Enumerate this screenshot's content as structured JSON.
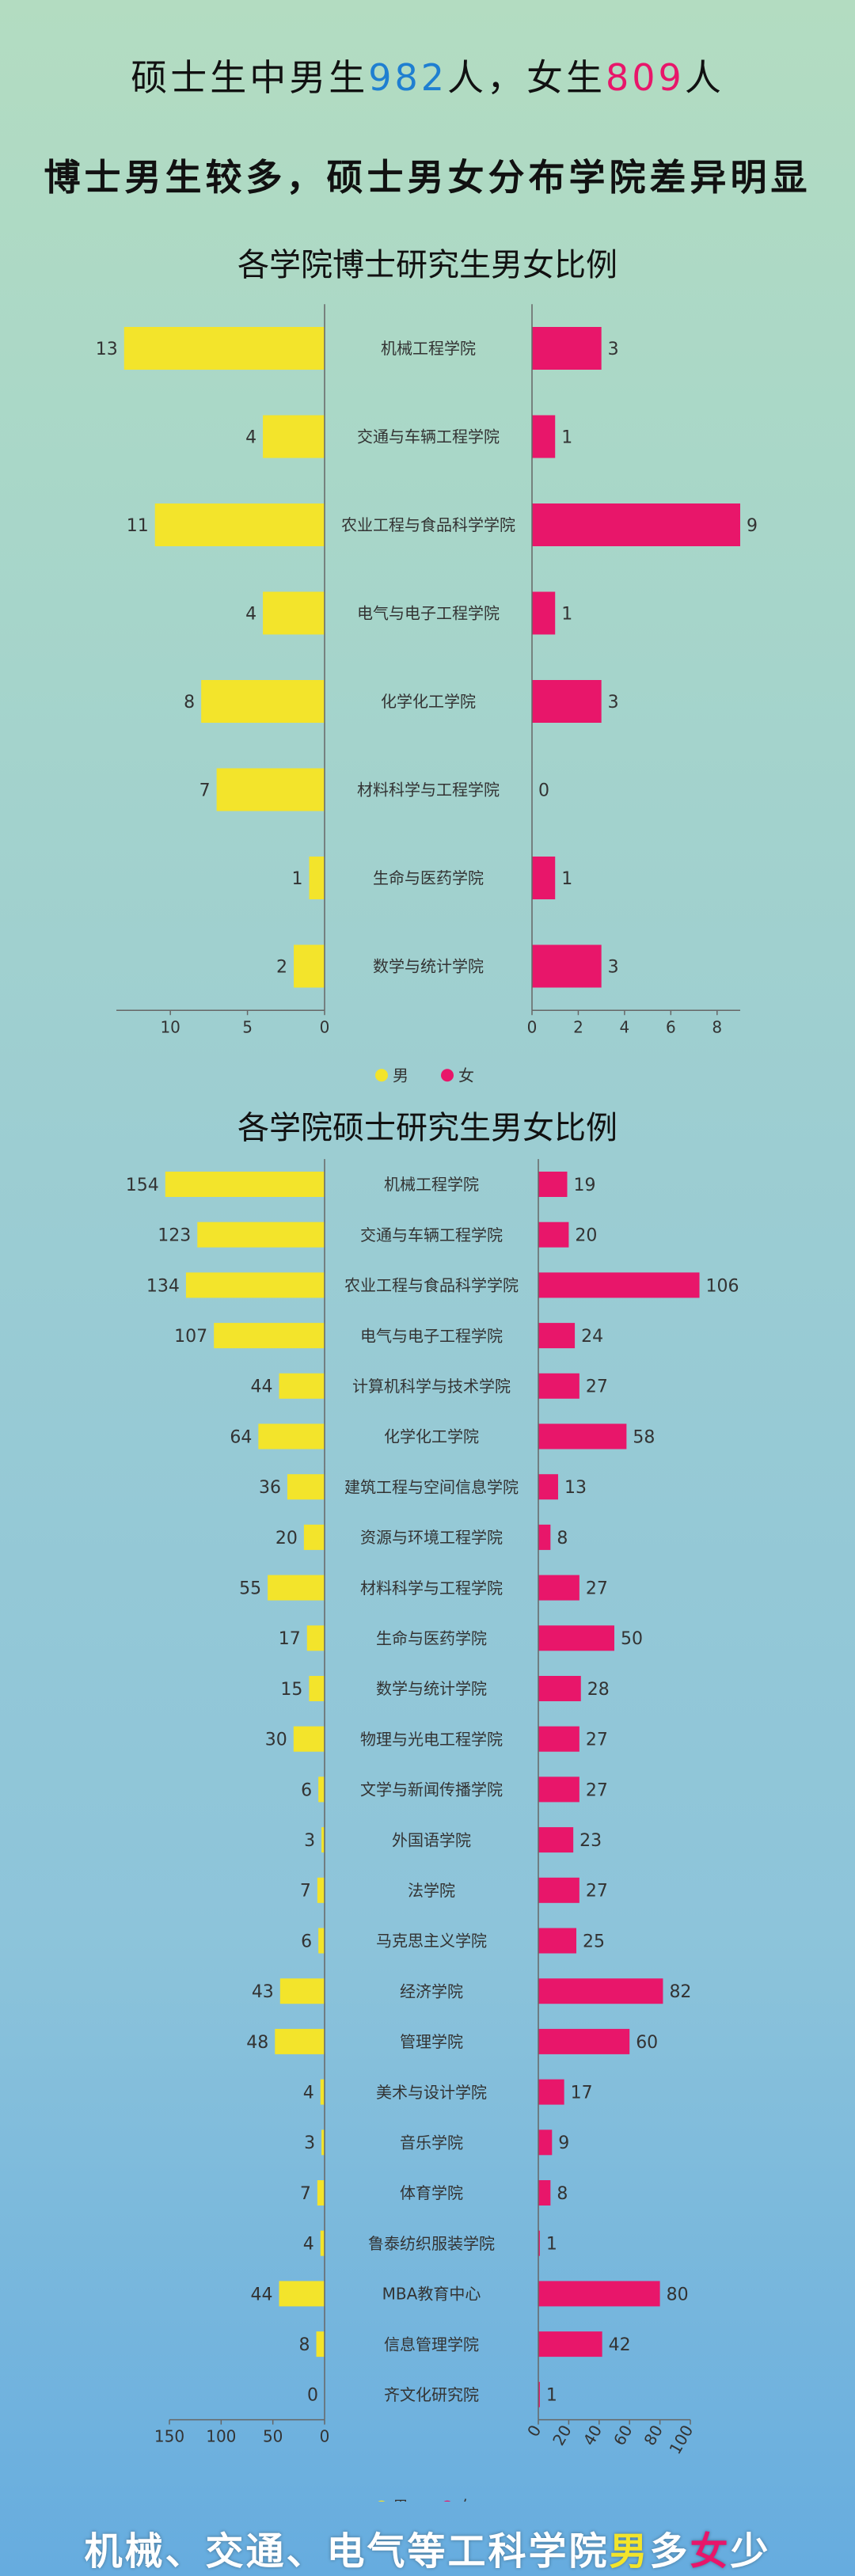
{
  "headline1": {
    "pre": "硕士生中男生",
    "male": "982",
    "mid": "人，女生",
    "female": "809",
    "post": "人"
  },
  "headline2": "博士男生较多，硕士男女分布学院差异明显",
  "colors": {
    "male": "#f3e42b",
    "female": "#e8166a",
    "blue": "#1f7fd1"
  },
  "footer": {
    "pre": "机械、交通、电气等工科学院",
    "male": "男",
    "mid": "多",
    "female": "女",
    "post": "少"
  },
  "chart_data": [
    {
      "type": "bar",
      "title": "各学院博士研究生男女比例",
      "categories": [
        "机械工程学院",
        "交通与车辆工程学院",
        "农业工程与食品科学学院",
        "电气与电子工程学院",
        "化学化工学院",
        "材料科学与工程学院",
        "生命与医药学院",
        "数学与统计学院"
      ],
      "series": [
        {
          "name": "男",
          "values": [
            13,
            4,
            11,
            4,
            8,
            7,
            1,
            2
          ]
        },
        {
          "name": "女",
          "values": [
            3,
            1,
            9,
            1,
            3,
            0,
            1,
            3
          ]
        }
      ],
      "male_ticks": [
        "10",
        "5",
        "0"
      ],
      "female_ticks": [
        "0",
        "2",
        "4",
        "6",
        "8"
      ],
      "male_max": 13.5,
      "female_max": 9
    },
    {
      "type": "bar",
      "title": "各学院硕士研究生男女比例",
      "categories": [
        "机械工程学院",
        "交通与车辆工程学院",
        "农业工程与食品科学学院",
        "电气与电子工程学院",
        "计算机科学与技术学院",
        "化学化工学院",
        "建筑工程与空间信息学院",
        "资源与环境工程学院",
        "材料科学与工程学院",
        "生命与医药学院",
        "数学与统计学院",
        "物理与光电工程学院",
        "文学与新闻传播学院",
        "外国语学院",
        "法学院",
        "马克思主义学院",
        "经济学院",
        "管理学院",
        "美术与设计学院",
        "音乐学院",
        "体育学院",
        "鲁泰纺织服装学院",
        "MBA教育中心",
        "信息管理学院",
        "齐文化研究院"
      ],
      "series": [
        {
          "name": "男",
          "values": [
            154,
            123,
            134,
            107,
            44,
            64,
            36,
            20,
            55,
            17,
            15,
            30,
            6,
            3,
            7,
            6,
            43,
            48,
            4,
            3,
            7,
            4,
            44,
            8,
            0
          ]
        },
        {
          "name": "女",
          "values": [
            19,
            20,
            106,
            24,
            27,
            58,
            13,
            8,
            27,
            50,
            28,
            27,
            27,
            23,
            27,
            25,
            82,
            60,
            17,
            9,
            8,
            1,
            80,
            42,
            1
          ]
        }
      ],
      "male_ticks": [
        "150",
        "100",
        "50",
        "0"
      ],
      "female_ticks": [
        "0",
        "20",
        "40",
        "60",
        "80",
        "100"
      ],
      "male_max": 150,
      "female_max": 100
    }
  ]
}
